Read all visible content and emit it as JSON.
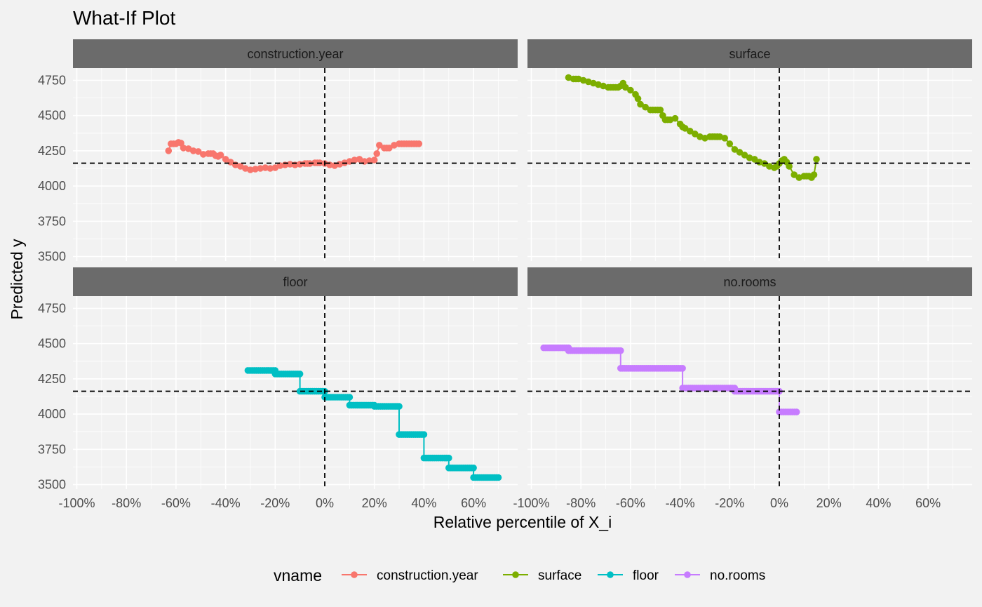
{
  "chart_data": {
    "type": "line",
    "title": "What-If Plot",
    "xlabel": "Relative percentile of X_i",
    "ylabel": "Predicted y",
    "xlim": [
      -100,
      75
    ],
    "ylim": [
      3500,
      4800
    ],
    "x_ticks": [
      -100,
      -80,
      -60,
      -40,
      -20,
      0,
      20,
      40,
      60
    ],
    "x_tick_labels": [
      "-100%",
      "-80%",
      "-60%",
      "-40%",
      "-20%",
      "0%",
      "20%",
      "40%",
      "60%"
    ],
    "y_ticks": [
      3500,
      3750,
      4000,
      4250,
      4500,
      4750
    ],
    "y_tick_labels": [
      "3500",
      "3750",
      "4000",
      "4250",
      "4500",
      "4750"
    ],
    "reference_lines": {
      "x": 0,
      "y": 4162
    },
    "legend": {
      "title": "vname",
      "position": "bottom"
    },
    "grid": true,
    "panels": [
      {
        "name": "construction.year",
        "color": "#f8766d",
        "x": [
          -63,
          -62,
          -60,
          -59,
          -58,
          -57,
          -55,
          -53,
          -51,
          -49,
          -47,
          -45,
          -44,
          -43,
          -42,
          -40,
          -38,
          -36,
          -34,
          -32,
          -30,
          -28,
          -26,
          -24,
          -22,
          -20,
          -18,
          -16,
          -14,
          -12,
          -10,
          -8,
          -6,
          -4,
          -2,
          0,
          2,
          4,
          6,
          8,
          10,
          12,
          14,
          16,
          18,
          20,
          21,
          22,
          24,
          26,
          28,
          30,
          32,
          34,
          36,
          38
        ],
        "y": [
          4250,
          4300,
          4300,
          4310,
          4305,
          4270,
          4265,
          4250,
          4245,
          4225,
          4230,
          4230,
          4215,
          4210,
          4220,
          4190,
          4170,
          4150,
          4140,
          4125,
          4115,
          4120,
          4125,
          4130,
          4125,
          4130,
          4145,
          4150,
          4155,
          4150,
          4155,
          4160,
          4160,
          4165,
          4165,
          4160,
          4150,
          4145,
          4155,
          4165,
          4175,
          4185,
          4190,
          4175,
          4180,
          4185,
          4230,
          4290,
          4270,
          4270,
          4290,
          4300,
          4300,
          4300,
          4300,
          4300
        ]
      },
      {
        "name": "surface",
        "color": "#7cae00",
        "x": [
          -85,
          -83,
          -81,
          -79,
          -77,
          -75,
          -73,
          -71,
          -69,
          -67,
          -65,
          -64,
          -63,
          -62,
          -60,
          -58,
          -57,
          -56,
          -54,
          -52,
          -50,
          -48,
          -47,
          -46,
          -44,
          -42,
          -40,
          -39,
          -38,
          -36,
          -34,
          -32,
          -30,
          -28,
          -26,
          -24,
          -22,
          -20,
          -18,
          -16,
          -14,
          -12,
          -10,
          -8,
          -6,
          -4,
          -2,
          -1,
          0,
          1,
          2,
          3,
          4,
          6,
          8,
          10,
          12,
          13,
          14,
          15
        ],
        "y": [
          4770,
          4760,
          4760,
          4750,
          4740,
          4730,
          4720,
          4710,
          4700,
          4700,
          4700,
          4710,
          4730,
          4700,
          4680,
          4650,
          4620,
          4580,
          4560,
          4540,
          4540,
          4540,
          4500,
          4470,
          4470,
          4480,
          4440,
          4420,
          4410,
          4390,
          4370,
          4350,
          4340,
          4350,
          4350,
          4350,
          4340,
          4300,
          4260,
          4240,
          4220,
          4200,
          4190,
          4170,
          4160,
          4140,
          4130,
          4140,
          4160,
          4180,
          4190,
          4170,
          4140,
          4080,
          4060,
          4070,
          4070,
          4060,
          4080,
          4190
        ]
      },
      {
        "name": "floor",
        "color": "#00bfc4",
        "x": [
          -31,
          -20,
          -20,
          -10,
          -10,
          0,
          0,
          10,
          10,
          20,
          20,
          30,
          30,
          40,
          40,
          50,
          50,
          60,
          60,
          70
        ],
        "y": [
          4310,
          4310,
          4285,
          4285,
          4162,
          4162,
          4120,
          4120,
          4063,
          4063,
          4055,
          4055,
          3855,
          3855,
          3688,
          3688,
          3618,
          3618,
          3550,
          3550
        ]
      },
      {
        "name": "no.rooms",
        "color": "#c77cff",
        "x": [
          -95,
          -85,
          -85,
          -64,
          -64,
          -39,
          -39,
          -18,
          -18,
          0,
          0,
          7
        ],
        "y": [
          4470,
          4470,
          4450,
          4450,
          4325,
          4325,
          4185,
          4185,
          4162,
          4162,
          4015,
          4015
        ]
      }
    ]
  }
}
